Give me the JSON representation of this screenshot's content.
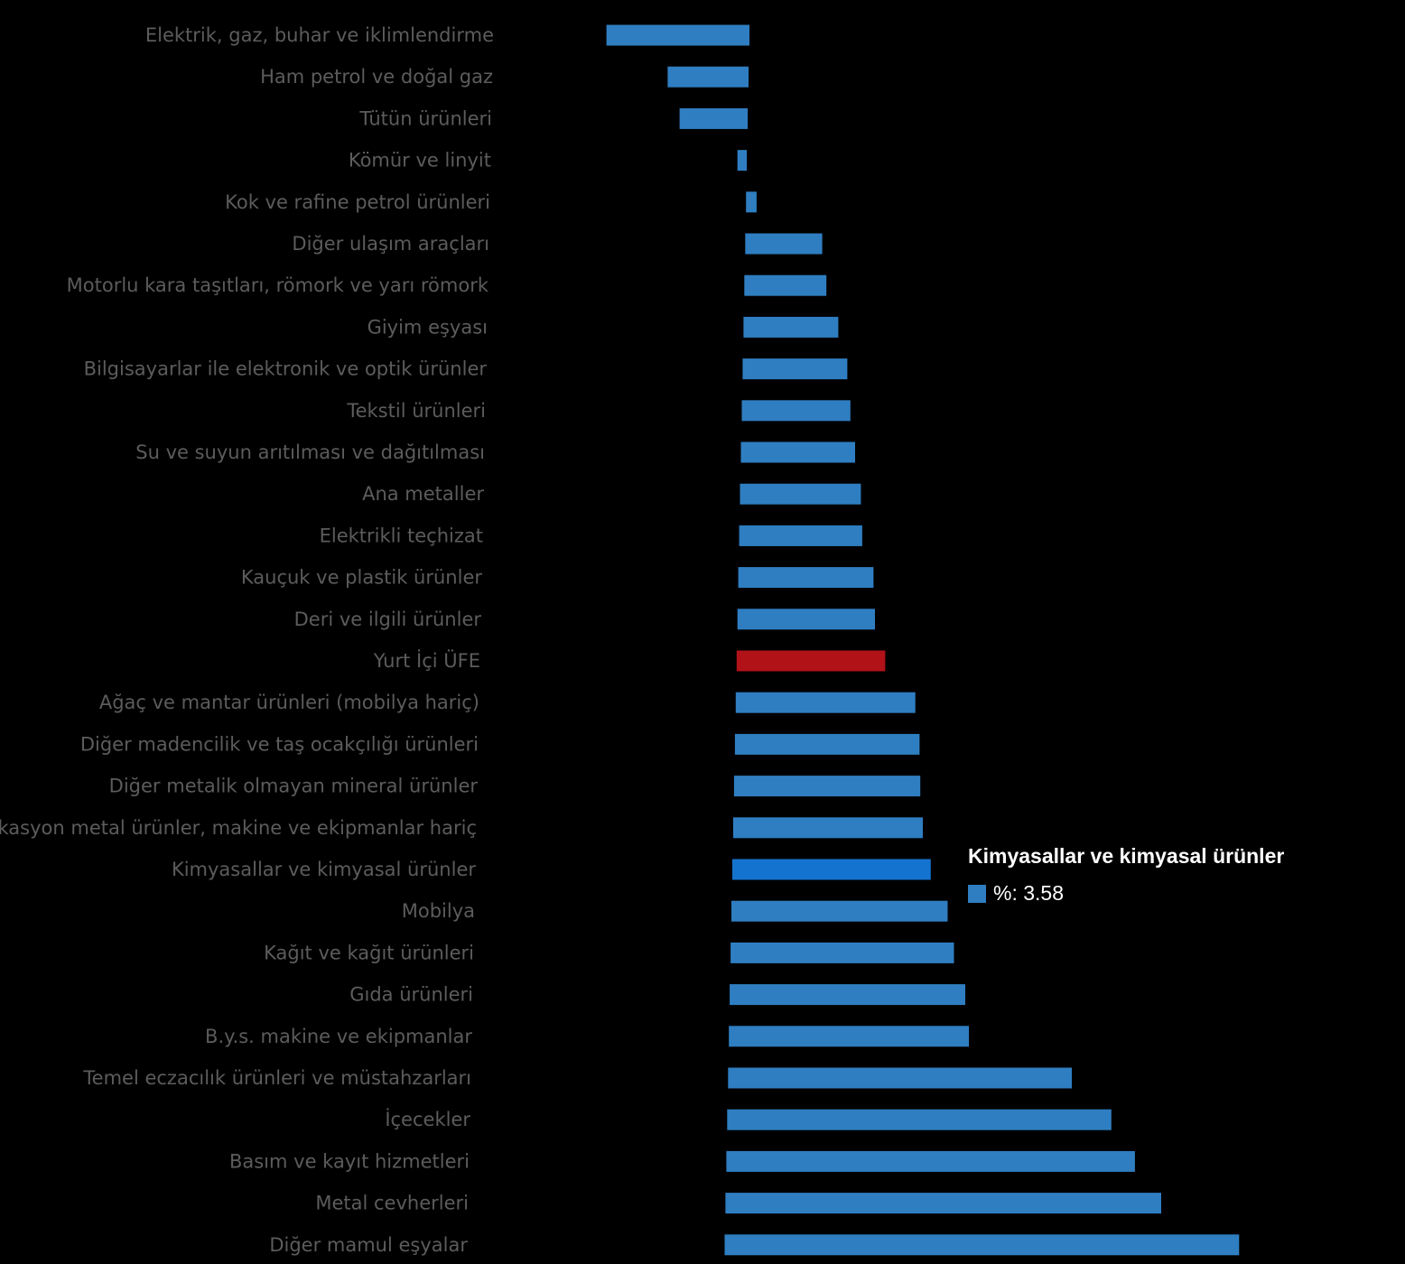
{
  "chart_data": {
    "type": "bar",
    "orientation": "horizontal",
    "categories": [
      "Elektrik, gaz, buhar ve iklimlendirme",
      "Ham petrol ve doğal gaz",
      "Tütün ürünleri",
      "Kömür ve linyit",
      "Kok ve rafine petrol ürünleri",
      "Diğer ulaşım araçları",
      "Motorlu kara taşıtları, römork ve yarı römork",
      "Giyim eşyası",
      "Bilgisayarlar ile elektronik ve optik ürünler",
      "Tekstil ürünleri",
      "Su ve suyun arıtılması ve dağıtılması",
      "Ana metaller",
      "Elektrikli teçhizat",
      "Kauçuk ve plastik ürünler",
      "Deri ve ilgili ürünler",
      "Yurt İçi ÜFE",
      "Ağaç ve mantar ürünleri (mobilya hariç)",
      "Diğer madencilik ve taş ocakçılığı ürünleri",
      "Diğer metalik olmayan mineral ürünler",
      "kasyon metal ürünler, makine ve ekipmanlar hariç",
      "Kimyasallar ve kimyasal ürünler",
      "Mobilya",
      "Kağıt ve kağıt ürünleri",
      "Gıda ürünleri",
      "B.y.s. makine ve ekipmanlar",
      "Temel eczacılık ürünleri ve müstahzarları",
      "İçecekler",
      "Basım ve kayıt hizmetleri",
      "Metal cevherleri",
      "Diğer mamul eşyalar"
    ],
    "values": [
      -2.58,
      -1.46,
      -1.23,
      -0.17,
      0.19,
      1.39,
      1.48,
      1.71,
      1.89,
      1.96,
      2.06,
      2.18,
      2.22,
      2.44,
      2.48,
      2.68,
      3.24,
      3.33,
      3.36,
      3.42,
      3.58,
      3.9,
      4.03,
      4.25,
      4.33,
      6.2,
      6.93,
      7.37,
      7.86,
      9.28
    ],
    "colors": {
      "default": "#2f7ec1",
      "highlight": "#b01218",
      "hover": "#1573d0"
    },
    "highlight_category": "Yurt İçi ÜFE",
    "hover_category": "Kimyasallar ve kimyasal ürünler",
    "xlim": [
      -2.6,
      9.3
    ],
    "unit": "%"
  },
  "tooltip": {
    "title": "Kimyasallar ve kimyasal ürünler",
    "key": "%:",
    "value": "3.58",
    "swatch_color": "#2f7ec1"
  }
}
